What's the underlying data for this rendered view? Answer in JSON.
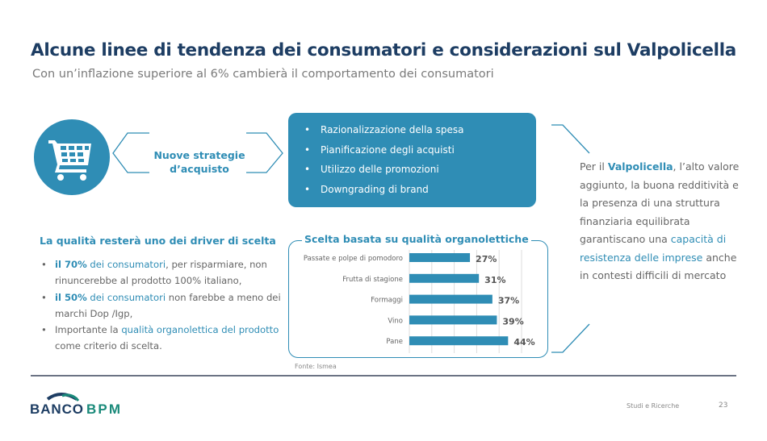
{
  "title": "Alcune linee di tendenza dei consumatori e considerazioni sul Valpolicella",
  "subtitle": "Con un’inflazione superiore al 6% cambierà il comportamento dei consumatori",
  "strategy": {
    "icon": "shopping-cart-icon",
    "line1": "Nuove strategie",
    "line2": "d’acquisto",
    "items": [
      "Razionalizzazione della spesa",
      "Pianificazione degli acquisti",
      "Utilizzo delle promozioni",
      "Downgrading di brand"
    ]
  },
  "quality": {
    "title": "La qualità resterà uno dei driver di scelta",
    "b1": {
      "a": "il 70%",
      "b": " dei consumatori",
      "c": ", per risparmiare, non rinuncerebbe al prodotto 100% italiano,"
    },
    "b2": {
      "a": "il 50%",
      "b": " dei consumatori",
      "c": " non farebbe a meno dei marchi Dop /Igp,"
    },
    "b3": {
      "a": "Importante la ",
      "b": "qualità organolettica del prodotto",
      "c": " come criterio di scelta."
    }
  },
  "chart_data": {
    "type": "bar",
    "orientation": "horizontal",
    "title": "Scelta basata su qualità organolettiche",
    "categories": [
      "Passate e polpe di pomodoro",
      "Frutta di stagione",
      "Formaggi",
      "Vino",
      "Pane"
    ],
    "values": [
      27,
      31,
      37,
      39,
      44
    ],
    "labels": [
      "27%",
      "31%",
      "37%",
      "39%",
      "44%"
    ],
    "xlim": [
      0,
      50
    ],
    "grid": true,
    "color": "#2f8db5"
  },
  "source": "Fonte: Ismea",
  "right": {
    "a": "Per il ",
    "b": "Valpolicella",
    "c": ", l’alto valore aggiunto, la buona redditività e la presenza di una struttura finanziaria equilibrata garantiscano una ",
    "d": "capacità di resistenza delle imprese",
    "e": " anche in contesti difficili di mercato"
  },
  "footer": {
    "logo": "BANCO BPM",
    "section": "Studi e Ricerche",
    "page": "23"
  },
  "colors": {
    "accent": "#2f8db5",
    "title": "#1d3d63"
  }
}
